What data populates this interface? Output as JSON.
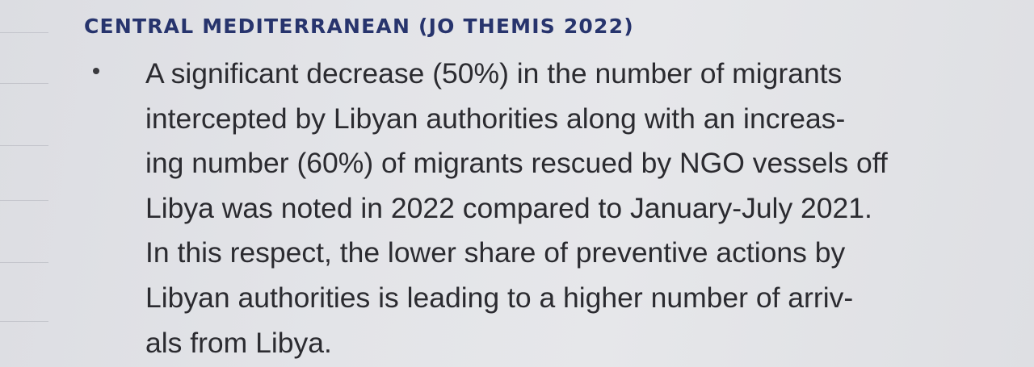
{
  "section": {
    "heading": "CENTRAL MEDITERRANEAN (JO THEMIS 2022)"
  },
  "bullet": {
    "lines": [
      "A significant decrease (50%) in the number of migrants",
      "intercepted by Libyan authorities along with an increas-",
      "ing number (60%) of migrants rescued by NGO vessels off",
      "Libya was noted in 2022 compared to January-July 2021.",
      "In this respect, the lower share of preventive actions by",
      "Libyan authorities is leading to a higher number of arriv-",
      "als from Libya."
    ]
  }
}
